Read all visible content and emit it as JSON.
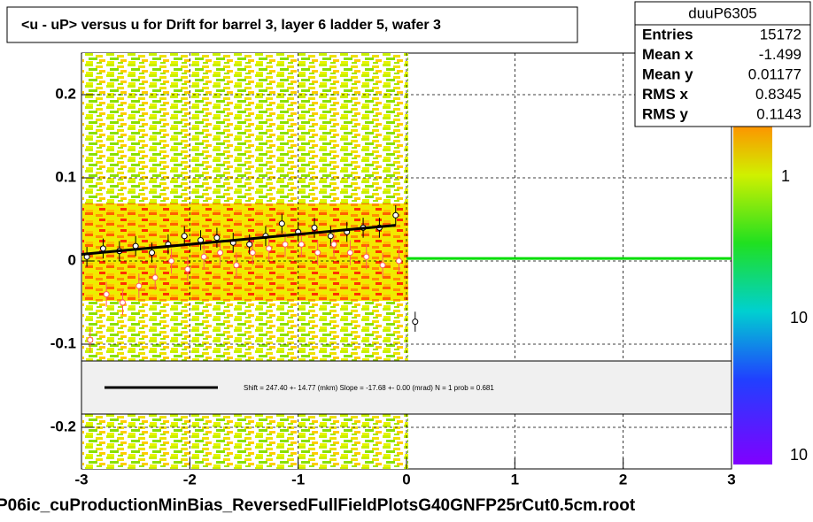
{
  "chart_data": {
    "type": "profile",
    "title": "<u - uP>       versus   u for Drift for barrel 3, layer 6 ladder 5, wafer 3",
    "footer": "P06ic_cuProductionMinBias_ReversedFullFieldPlotsG40GNFP25rCut0.5cm.root",
    "stats": {
      "name": "duuP6305",
      "rows": [
        [
          "Entries",
          "15172"
        ],
        [
          "Mean x",
          "-1.499"
        ],
        [
          "Mean y",
          "0.01177"
        ],
        [
          "RMS x",
          "0.8345"
        ],
        [
          "RMS y",
          "0.1143"
        ]
      ]
    },
    "fit_text": "Shift =   247.40 +- 14.77 (mkm) Slope =   -17.68 +- 0.00 (mrad)  N = 1 prob = 0.681",
    "palette_labels": [
      "1",
      "10",
      "10"
    ],
    "xlim": [
      -3,
      3
    ],
    "xticks": [
      -3,
      -2,
      -1,
      0,
      1,
      2,
      3
    ],
    "ylim": [
      -0.25,
      0.25
    ],
    "yticks": [
      -0.2,
      -0.1,
      0,
      0.1,
      0.2
    ],
    "grid": true,
    "series": [
      {
        "color": "#000000",
        "x": [
          -2.95,
          -2.8,
          -2.65,
          -2.5,
          -2.35,
          -2.2,
          -2.05,
          -1.9,
          -1.75,
          -1.6,
          -1.45,
          -1.3,
          -1.15,
          -1.0,
          -0.85,
          -0.7,
          -0.55,
          -0.4,
          -0.25,
          -0.1,
          0.08
        ],
        "values": [
          0.005,
          0.015,
          0.012,
          0.018,
          0.01,
          0.02,
          0.03,
          0.025,
          0.028,
          0.022,
          0.02,
          0.03,
          0.045,
          0.035,
          0.04,
          0.03,
          0.035,
          0.04,
          0.04,
          0.055,
          -0.073
        ],
        "errors": [
          0.012,
          0.012,
          0.012,
          0.012,
          0.012,
          0.012,
          0.012,
          0.012,
          0.012,
          0.012,
          0.012,
          0.012,
          0.012,
          0.012,
          0.012,
          0.012,
          0.012,
          0.012,
          0.012,
          0.012,
          0.012
        ]
      },
      {
        "color": "#ff5a5a",
        "x": [
          -2.92,
          -2.77,
          -2.62,
          -2.47,
          -2.32,
          -2.17,
          -2.02,
          -1.87,
          -1.72,
          -1.57,
          -1.42,
          -1.27,
          -1.12,
          -0.97,
          -0.82,
          -0.67,
          -0.52,
          -0.37,
          -0.22,
          -0.07
        ],
        "values": [
          -0.095,
          -0.04,
          -0.05,
          -0.03,
          -0.02,
          0.0,
          -0.01,
          0.005,
          0.01,
          -0.005,
          0.01,
          0.015,
          0.02,
          0.02,
          0.01,
          0.02,
          0.01,
          0.005,
          -0.005,
          0.0
        ],
        "errors": [
          0.015,
          0.015,
          0.015,
          0.015,
          0.015,
          0.015,
          0.015,
          0.015,
          0.015,
          0.015,
          0.015,
          0.015,
          0.015,
          0.015,
          0.015,
          0.015,
          0.015,
          0.015,
          0.015,
          0.015
        ]
      }
    ],
    "fit": {
      "color": "#000000",
      "x": [
        -3,
        -0.1
      ],
      "values": [
        0.008,
        0.043
      ]
    },
    "reference": {
      "color": "#00dd00",
      "x": [
        0,
        3
      ],
      "values": [
        0.003,
        0.003
      ]
    }
  }
}
